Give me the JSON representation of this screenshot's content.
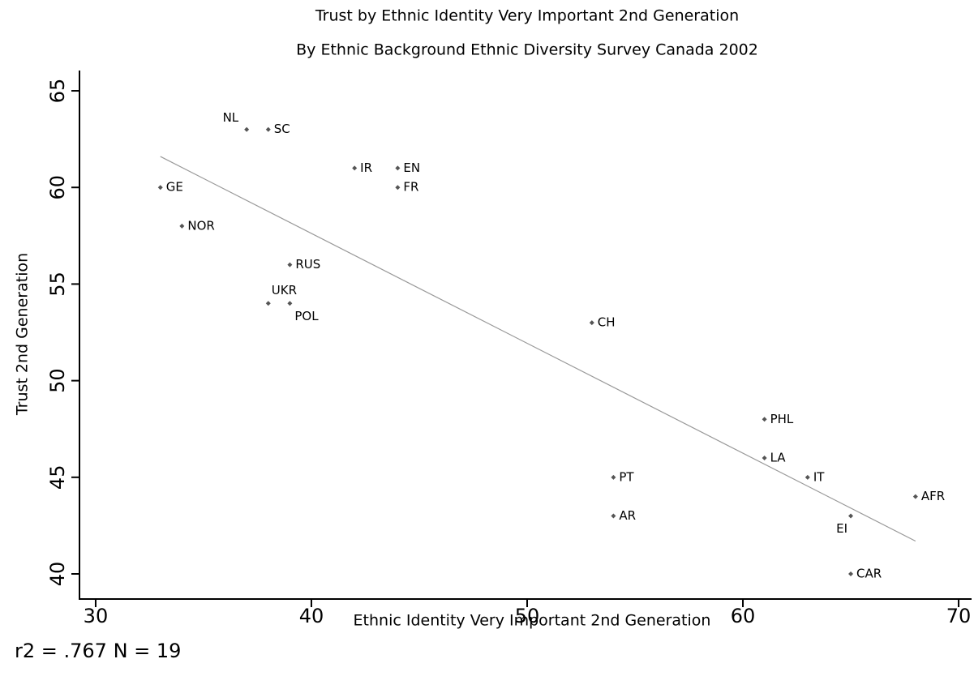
{
  "chart_data": {
    "type": "scatter",
    "title": "Trust by Ethnic Identity Very Important 2nd Generation",
    "subtitle": "By Ethnic Background Ethnic Diversity Survey Canada 2002",
    "x_label": "Ethnic Identity Very Important 2nd Generation",
    "y_label": "Trust 2nd Generation",
    "annotation": "r2 = .767  N = 19",
    "labels": [
      "NL",
      "SC",
      "IR",
      "EN",
      "FR",
      "GE",
      "NOR",
      "RUS",
      "UKR",
      "POL",
      "CH",
      "PHL",
      "LA",
      "IT",
      "PT",
      "AR",
      "AFR",
      "EI",
      "CAR"
    ],
    "x": [
      37,
      38,
      42,
      44,
      44,
      33,
      34,
      39,
      38,
      39,
      53,
      61,
      61,
      63,
      54,
      54,
      68,
      65,
      65
    ],
    "values": [
      63,
      63,
      61,
      61,
      60,
      60,
      58,
      56,
      54,
      54,
      53,
      48,
      46,
      45,
      45,
      43,
      44,
      43,
      40
    ],
    "color": "#555555",
    "fit_line": {
      "x": [
        33,
        68
      ],
      "y": [
        61.6,
        41.7
      ],
      "color": "#999999"
    },
    "xlim": [
      29.25,
      70.6
    ],
    "ylim": [
      38.7,
      66.05
    ],
    "xticks": [
      30,
      40,
      50,
      60,
      70
    ],
    "yticks": [
      40,
      45,
      50,
      55,
      60,
      65
    ],
    "grid": false
  }
}
